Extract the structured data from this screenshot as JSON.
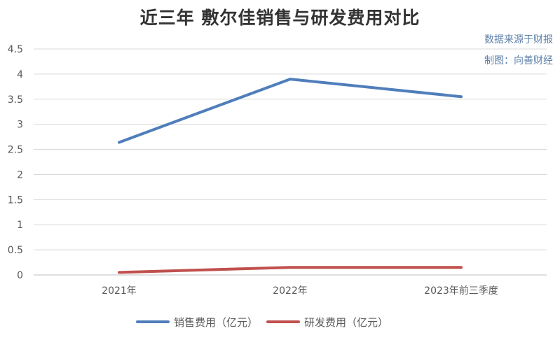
{
  "chart_data": {
    "type": "line",
    "title": "近三年 敷尔佳销售与研发费用对比",
    "annotations": [
      "数据来源于财报",
      "制图：向善财经"
    ],
    "categories": [
      "2021年",
      "2022年",
      "2023年前三季度"
    ],
    "series": [
      {
        "name": "销售费用（亿元）",
        "values": [
          2.64,
          3.9,
          3.55
        ],
        "color": "#4f7ebb"
      },
      {
        "name": "研发费用（亿元）",
        "values": [
          0.05,
          0.15,
          0.15
        ],
        "color": "#c0504d"
      }
    ],
    "xlabel": "",
    "ylabel": "",
    "ylim": [
      0,
      4.5
    ],
    "yticks": [
      "0",
      "0.5",
      "1",
      "1.5",
      "2",
      "2.5",
      "3",
      "3.5",
      "4",
      "4.5"
    ],
    "grid": true,
    "legend": "bottom"
  }
}
